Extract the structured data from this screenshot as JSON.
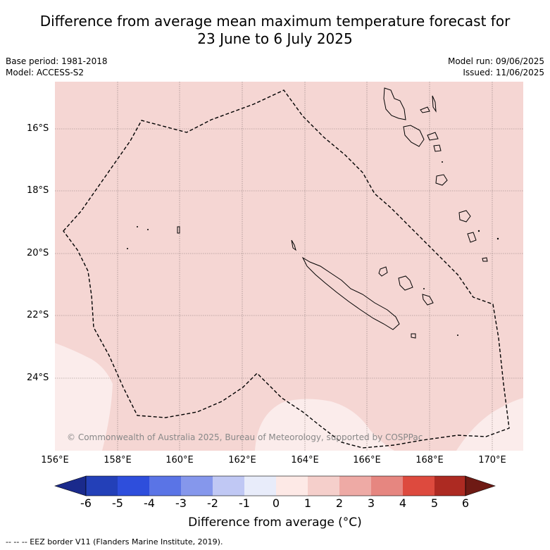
{
  "title_line1": "Difference from average mean maximum temperature forecast for",
  "title_line2": "23 June to 6 July 2025",
  "base_period": "Base period: 1981-2018",
  "model": "Model: ACCESS-S2",
  "model_run": "Model run: 09/06/2025",
  "issued": "Issued: 11/06/2025",
  "copyright": "© Commonwealth of Australia 2025, Bureau of Meteorology, supported by COSPPac",
  "lat_labels": [
    "16°S",
    "18°S",
    "20°S",
    "22°S",
    "24°S"
  ],
  "lon_labels": [
    "156°E",
    "158°E",
    "160°E",
    "162°E",
    "164°E",
    "166°E",
    "168°E",
    "170°E"
  ],
  "colorbar": {
    "ticks": [
      "-6",
      "-5",
      "-4",
      "-3",
      "-2",
      "-1",
      "0",
      "1",
      "2",
      "3",
      "4",
      "5",
      "6"
    ],
    "colors": [
      "#1a2a8c",
      "#2340b8",
      "#2e4edc",
      "#5a74e6",
      "#8597ec",
      "#c0c8f4",
      "#e8ecfa",
      "#fde9e6",
      "#f5cfcb",
      "#eeaaa5",
      "#e68680",
      "#dd4a3e",
      "#ad2a22",
      "#6e1a14"
    ],
    "label": "Difference from average (°C)"
  },
  "legend_note": "-- -- -- EEZ border V11 (Flanders Marine Institute, 2019).",
  "map": {
    "background_color": "#f5d6d3",
    "light_color": "#fbeceb"
  }
}
